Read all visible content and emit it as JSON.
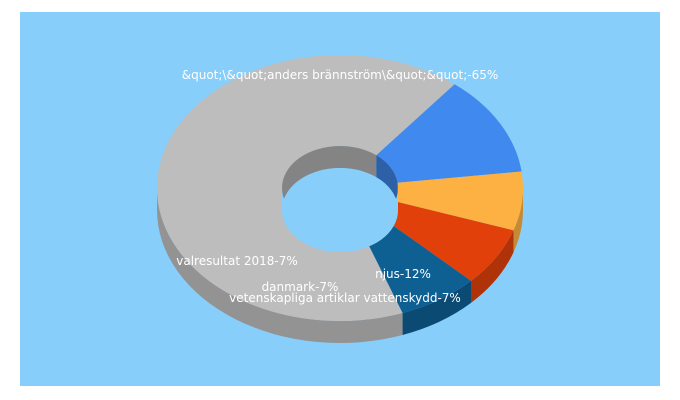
{
  "chart_data": {
    "type": "pie",
    "style": "3d-donut",
    "slices": [
      {
        "label": "&quot;\\&quot;anders brännström\\&quot;&quot;",
        "value": 65,
        "color": "#bdbdbd",
        "text": "&quot;\\&quot;anders brännström\\&quot;&quot;-65%"
      },
      {
        "label": "njus",
        "value": 12,
        "color": "#4089ee",
        "text": "njus-12%"
      },
      {
        "label": "vetenskapliga artiklar vattenskydd",
        "value": 7,
        "color": "#fdb142",
        "text": "vetenskapliga artiklar vattenskydd-7%"
      },
      {
        "label": "danmark",
        "value": 7,
        "color": "#e1400b",
        "text": "danmark-7%"
      },
      {
        "label": "valresultat 2018",
        "value": 7,
        "color": "#0e5f92",
        "text": "valresultat 2018-7%"
      }
    ],
    "background": "#87cefa"
  }
}
